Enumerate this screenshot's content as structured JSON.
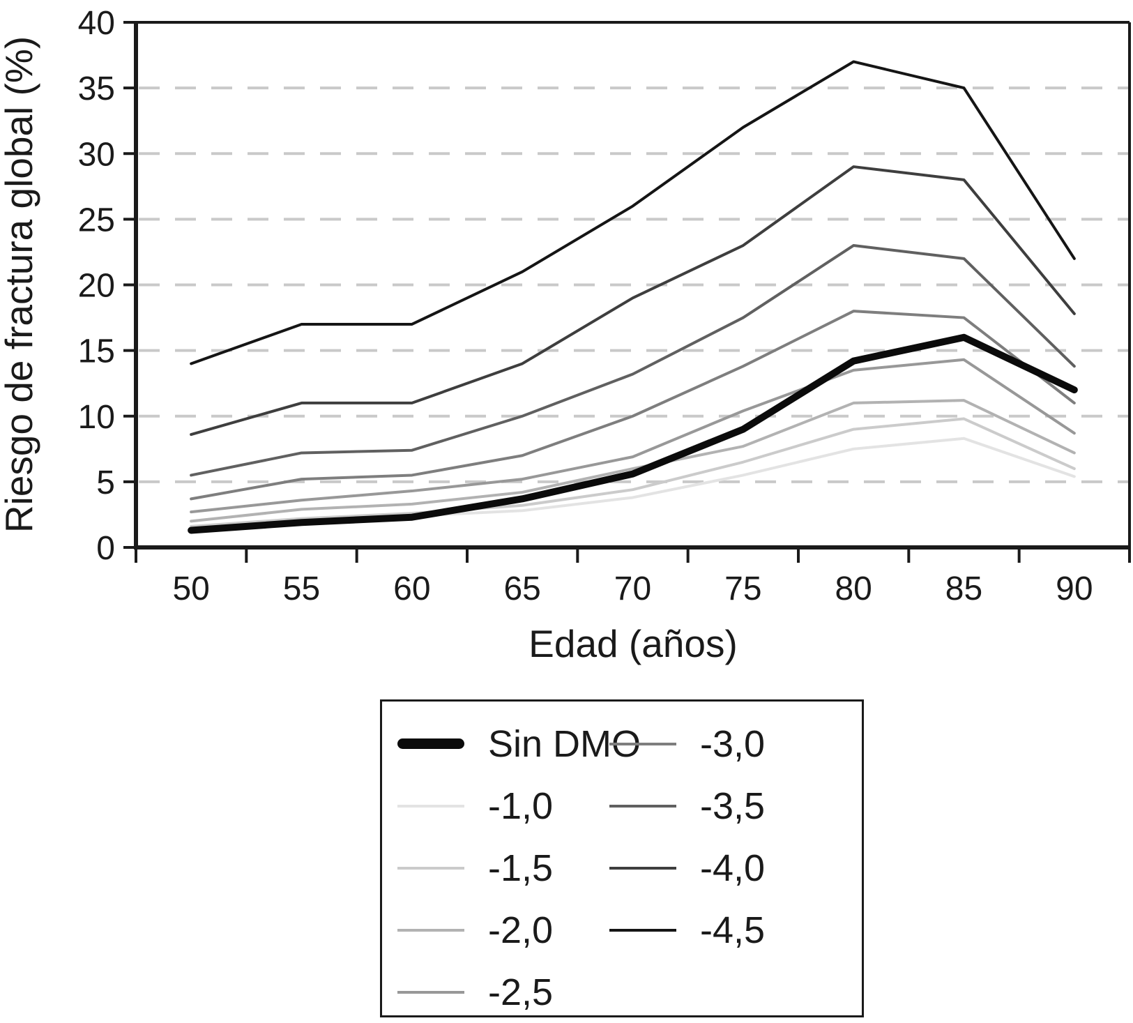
{
  "page": {
    "background": "#ffffff"
  },
  "chart_data": {
    "type": "line",
    "title": "",
    "xlabel": "Edad (años)",
    "ylabel": "Riesgo de fractura global (%)",
    "x": [
      50,
      55,
      60,
      65,
      70,
      75,
      80,
      85,
      90
    ],
    "ylim": [
      0,
      40
    ],
    "ytick_step": 5,
    "grid": {
      "horizontal": true,
      "style": "dashed",
      "color": "#c9c9c9",
      "at": [
        5,
        10,
        15,
        20,
        25,
        30,
        35
      ]
    },
    "legend_position": "boxed panel below plot, two columns",
    "series": [
      {
        "name": "-1,0",
        "color": "#e3e3e3",
        "width": 4,
        "values": [
          1.4,
          2.0,
          2.4,
          2.8,
          3.8,
          5.5,
          7.5,
          8.3,
          5.4
        ]
      },
      {
        "name": "-1,5",
        "color": "#cbcbcb",
        "width": 4,
        "values": [
          1.6,
          2.2,
          2.6,
          3.2,
          4.4,
          6.5,
          9.0,
          9.8,
          6.0
        ]
      },
      {
        "name": "-2,0",
        "color": "#b2b2b2",
        "width": 4,
        "values": [
          2.0,
          2.9,
          3.3,
          4.2,
          6.0,
          7.7,
          11.0,
          11.2,
          7.2
        ]
      },
      {
        "name": "-2,5",
        "color": "#989898",
        "width": 4,
        "values": [
          2.7,
          3.6,
          4.3,
          5.2,
          6.9,
          10.4,
          13.5,
          14.3,
          8.7
        ]
      },
      {
        "name": "-3,0",
        "color": "#7e7e7e",
        "width": 4,
        "values": [
          3.7,
          5.2,
          5.5,
          7.0,
          10.0,
          13.8,
          18.0,
          17.5,
          11.0
        ]
      },
      {
        "name": "-3,5",
        "color": "#606060",
        "width": 4,
        "values": [
          5.5,
          7.2,
          7.4,
          10.0,
          13.2,
          17.5,
          23.0,
          22.0,
          13.8
        ]
      },
      {
        "name": "-4,0",
        "color": "#3e3e3e",
        "width": 4,
        "values": [
          8.6,
          11.0,
          11.0,
          14.0,
          19.0,
          23.0,
          29.0,
          28.0,
          17.8
        ]
      },
      {
        "name": "-4,5",
        "color": "#151515",
        "width": 4,
        "values": [
          14.0,
          17.0,
          17.0,
          21.0,
          26.0,
          32.0,
          37.0,
          35.0,
          22.0
        ]
      },
      {
        "name": "Sin DMO",
        "color": "#0b0b0b",
        "width": 10,
        "values": [
          1.3,
          1.9,
          2.3,
          3.7,
          5.6,
          9.0,
          14.2,
          16.0,
          12.0
        ]
      }
    ]
  },
  "legend": {
    "columns": [
      [
        "Sin DMO",
        "-1,0",
        "-1,5",
        "-2,0",
        "-2,5"
      ],
      [
        "-3,0",
        "-3,5",
        "-4,0",
        "-4,5"
      ]
    ]
  },
  "axis": {
    "color": "#1a1a1a"
  }
}
